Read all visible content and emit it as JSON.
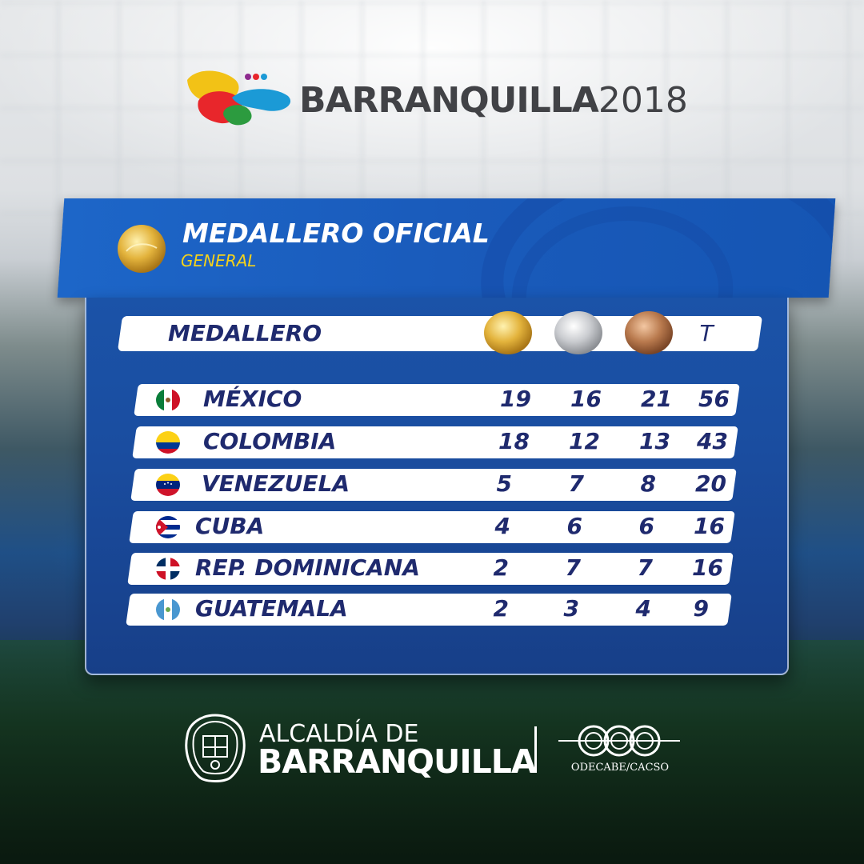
{
  "brand": {
    "name": "BARRANQUILLA",
    "year": "2018",
    "logo_colors": [
      "#f2c216",
      "#e8262b",
      "#1b9ad6",
      "#2c9b3f",
      "#8e2b8f"
    ]
  },
  "banner": {
    "title": "MEDALLERO OFICIAL",
    "subtitle": "GENERAL",
    "icon": "gold-medal-icon"
  },
  "table": {
    "header_label": "MEDALLERO",
    "columns": [
      {
        "icon": "gold-medal-icon",
        "color": "#e0b43a"
      },
      {
        "icon": "silver-medal-icon",
        "color": "#c9cbcf"
      },
      {
        "icon": "bronze-medal-icon",
        "color": "#b97a4e"
      }
    ],
    "total_label": "T",
    "rows": [
      {
        "country": "MÉXICO",
        "flag": "mexico-flag-icon",
        "gold": "19",
        "silver": "16",
        "bronze": "21",
        "total": "56"
      },
      {
        "country": "COLOMBIA",
        "flag": "colombia-flag-icon",
        "gold": "18",
        "silver": "12",
        "bronze": "13",
        "total": "43"
      },
      {
        "country": "VENEZUELA",
        "flag": "venezuela-flag-icon",
        "gold": "5",
        "silver": "7",
        "bronze": "8",
        "total": "20"
      },
      {
        "country": "CUBA",
        "flag": "cuba-flag-icon",
        "gold": "4",
        "silver": "6",
        "bronze": "6",
        "total": "16"
      },
      {
        "country": "REP. DOMINICANA",
        "flag": "dominican-republic-flag-icon",
        "gold": "2",
        "silver": "7",
        "bronze": "7",
        "total": "16"
      },
      {
        "country": "GUATEMALA",
        "flag": "guatemala-flag-icon",
        "gold": "2",
        "silver": "3",
        "bronze": "4",
        "total": "9"
      }
    ]
  },
  "footer": {
    "alcaldia_line1": "ALCALDÍA DE",
    "alcaldia_line2": "BARRANQUILLA",
    "odecabe": "ODECABE/CACSO"
  },
  "colors": {
    "panel_blue": "#1a4da0",
    "text_navy": "#1f2a6e",
    "subtitle_yellow": "#f5d21a"
  }
}
